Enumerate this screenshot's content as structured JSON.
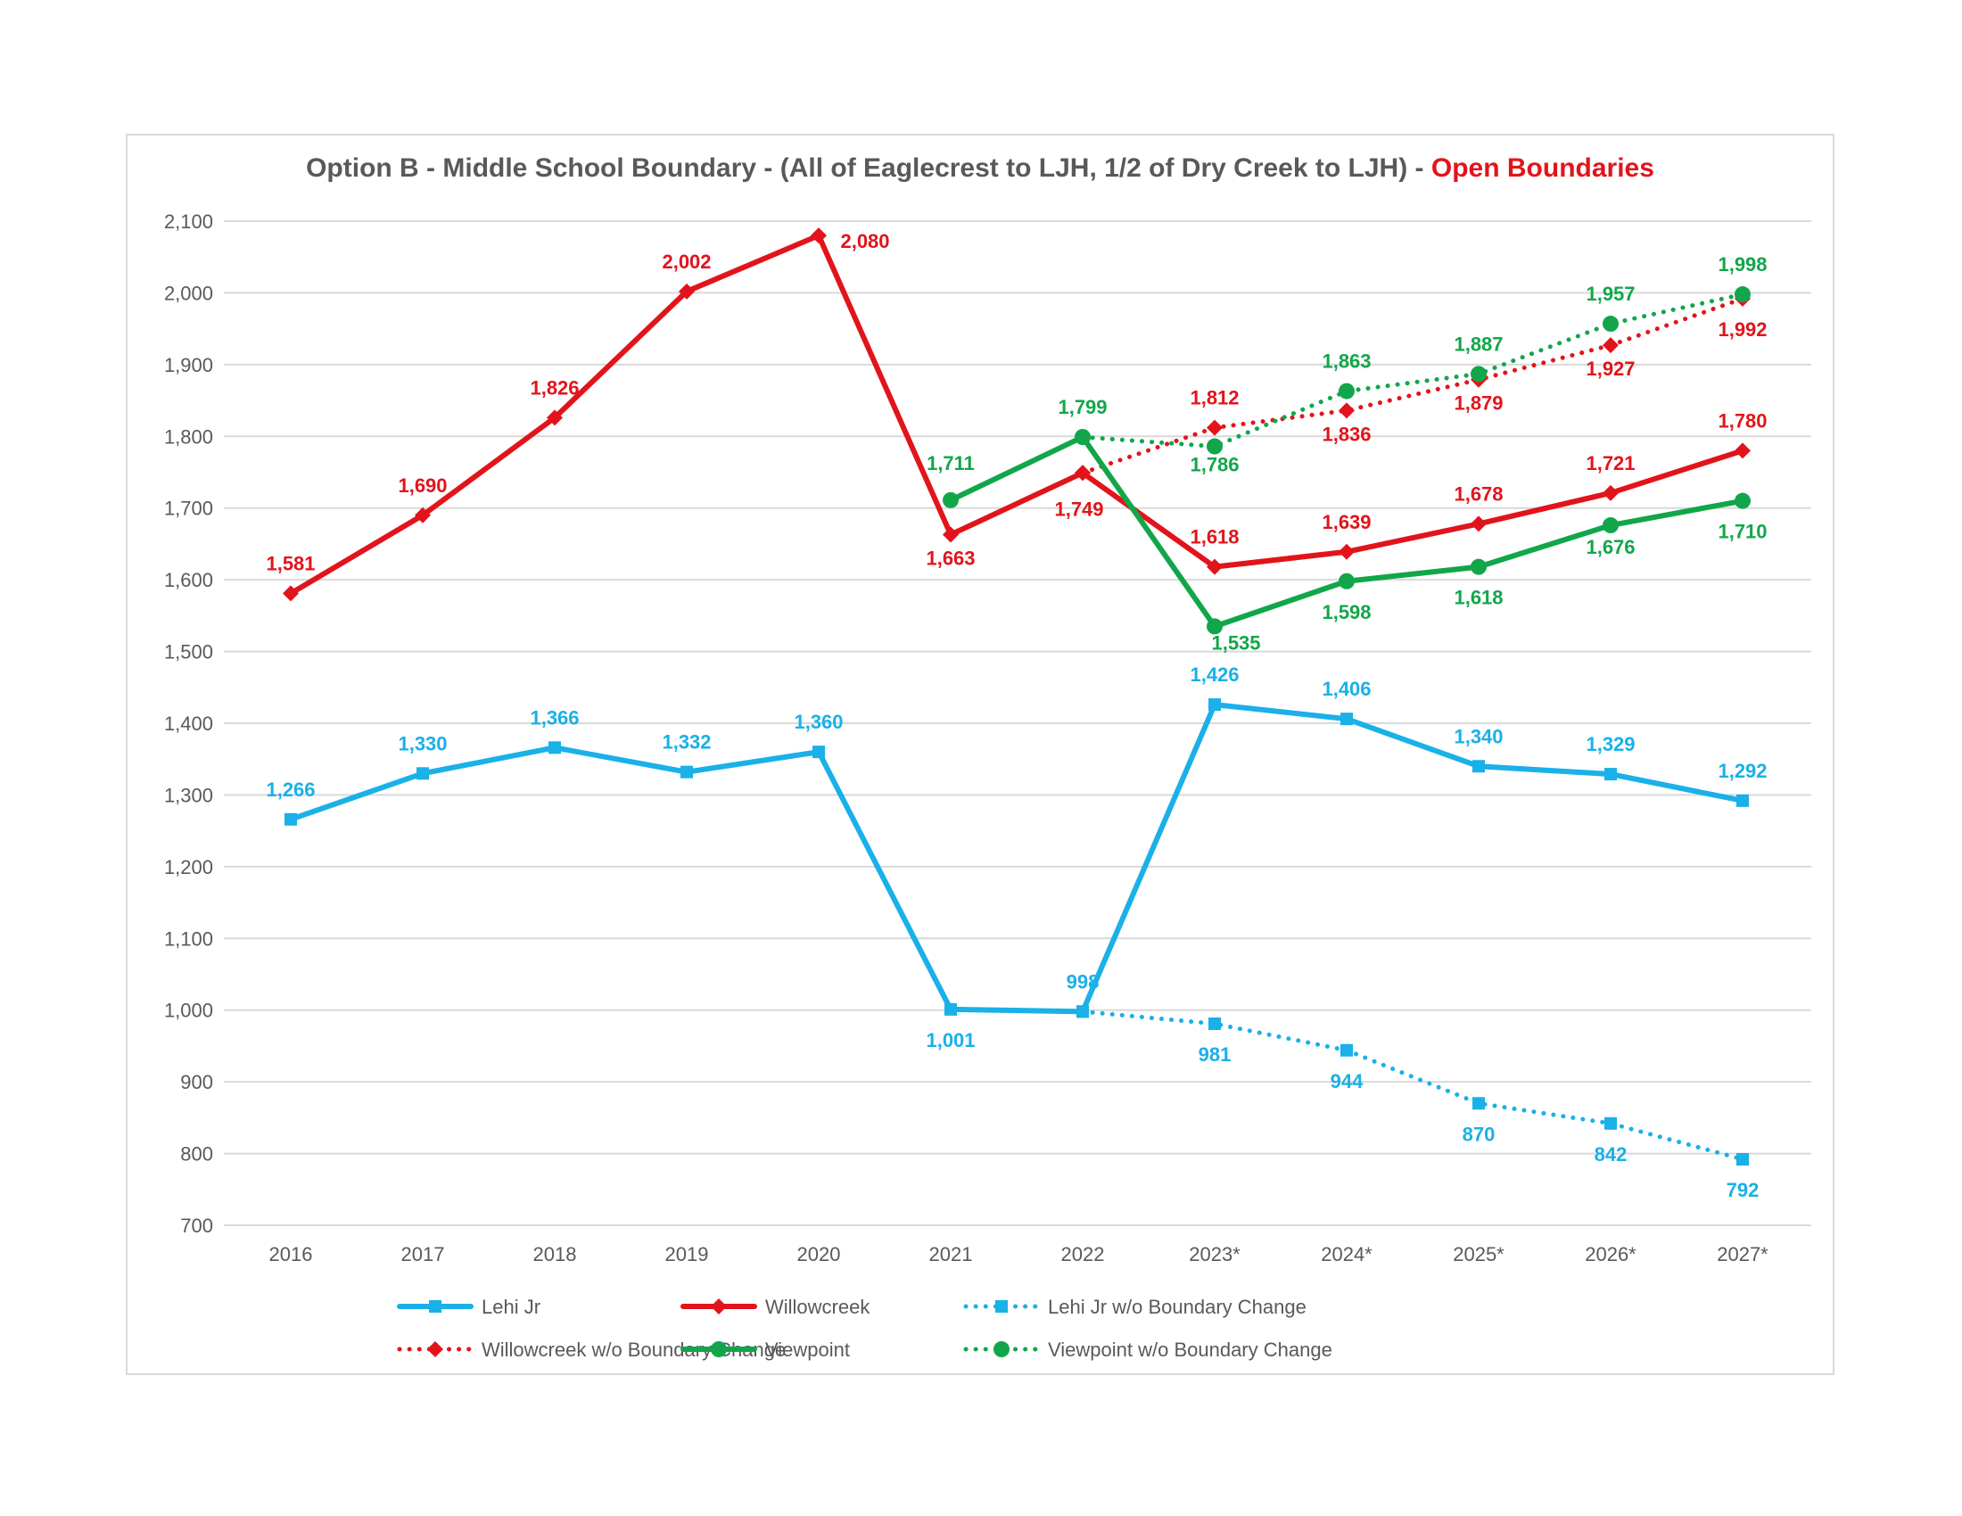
{
  "chart_data": {
    "type": "line",
    "title": "Option B - Middle School Boundary - (All of Eaglecrest to LJH, 1/2 of Dry Creek to LJH) - ",
    "title_accent": "Open Boundaries",
    "categories": [
      "2016",
      "2017",
      "2018",
      "2019",
      "2020",
      "2021",
      "2022",
      "2023*",
      "2024*",
      "2025*",
      "2026*",
      "2027*"
    ],
    "ylim": [
      700,
      2100
    ],
    "y_ticks": [
      "2,100",
      "2,000",
      "1,900",
      "1,800",
      "1,700",
      "1,600",
      "1,500",
      "1,400",
      "1,300",
      "1,200",
      "1,100",
      "1,000",
      "900",
      "800",
      "700"
    ],
    "grid": "horizontal",
    "legend_placement": "bottom",
    "series": [
      {
        "name": "Lehi Jr",
        "color": "#1ab0e8",
        "dashed": false,
        "marker": "square",
        "values": [
          1266,
          1330,
          1366,
          1332,
          1360,
          1001,
          998,
          1426,
          1406,
          1340,
          1329,
          1292
        ],
        "labels": [
          "1,266",
          "1,330",
          "1,366",
          "1,332",
          "1,360",
          "1,001",
          "998",
          "1,426",
          "1,406",
          "1,340",
          "1,329",
          "1,292"
        ]
      },
      {
        "name": "Willowcreek",
        "color": "#e2141b",
        "dashed": false,
        "marker": "diamond",
        "values": [
          1581,
          1690,
          1826,
          2002,
          2080,
          1663,
          1749,
          1618,
          1639,
          1678,
          1721,
          1780
        ],
        "labels": [
          "1,581",
          "1,690",
          "1,826",
          "2,002",
          "2,080",
          "1,663",
          "1,749",
          "1,618",
          "1,639",
          "1,678",
          "1,721",
          "1,780"
        ]
      },
      {
        "name": "Lehi Jr w/o Boundary Change",
        "color": "#1ab0e8",
        "dashed": true,
        "marker": "square",
        "values": [
          null,
          null,
          null,
          null,
          null,
          null,
          998,
          981,
          944,
          870,
          842,
          792
        ],
        "labels": [
          "",
          "",
          "",
          "",
          "",
          "",
          "",
          "981",
          "944",
          "870",
          "842",
          "792"
        ]
      },
      {
        "name": "Willowcreek w/o Boundary Change",
        "color": "#e2141b",
        "dashed": true,
        "marker": "diamond",
        "values": [
          null,
          null,
          null,
          null,
          null,
          null,
          1749,
          1812,
          1836,
          1879,
          1927,
          1992
        ],
        "labels": [
          "",
          "",
          "",
          "",
          "",
          "",
          "",
          "1,812",
          "1,836",
          "1,879",
          "1,927",
          "1,992"
        ]
      },
      {
        "name": "Viewpoint",
        "color": "#12a64a",
        "dashed": false,
        "marker": "circle",
        "values": [
          null,
          null,
          null,
          null,
          null,
          1711,
          1799,
          1535,
          1598,
          1618,
          1676,
          1710
        ],
        "labels": [
          "",
          "",
          "",
          "",
          "",
          "1,711",
          "1,799",
          "1,535",
          "1,598",
          "1,618",
          "1,676",
          "1,710"
        ]
      },
      {
        "name": "Viewpoint w/o Boundary Change",
        "color": "#12a64a",
        "dashed": true,
        "marker": "circle",
        "values": [
          null,
          null,
          null,
          null,
          null,
          null,
          1799,
          1786,
          1863,
          1887,
          1957,
          1998
        ],
        "labels": [
          "",
          "",
          "",
          "",
          "",
          "",
          "",
          "1,786",
          "1,863",
          "1,887",
          "1,957",
          "1,998"
        ]
      }
    ]
  }
}
